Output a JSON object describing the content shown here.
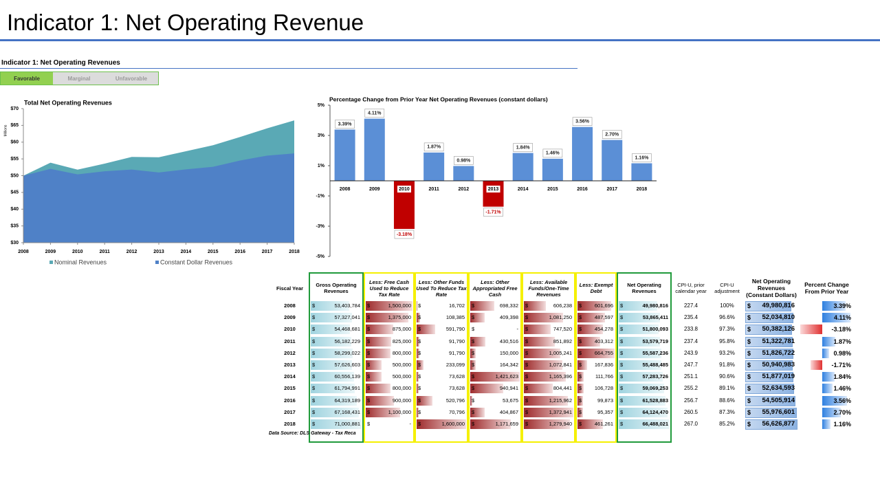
{
  "header": {
    "title": "Indicator 1: Net Operating Revenue",
    "subtitle": "Indicator 1: Net Operating Revenues",
    "ratings": [
      "Favorable",
      "Marginal",
      "Unfavorable"
    ]
  },
  "chart_data": [
    {
      "type": "area",
      "title": "Total Net Operating Revenues",
      "y_label": "Millions",
      "x": [
        2008,
        2009,
        2010,
        2011,
        2012,
        2013,
        2014,
        2015,
        2016,
        2017,
        2018
      ],
      "xlim": [
        2008,
        2018
      ],
      "xticks": [
        2008,
        2009,
        2010,
        2011,
        2012,
        2013,
        2014,
        2015,
        2016,
        2017,
        2018
      ],
      "ylim": [
        30,
        70
      ],
      "yticks": [
        {
          "value": 30,
          "label": "$30"
        },
        {
          "value": 35,
          "label": "$35"
        },
        {
          "value": 40,
          "label": "$40"
        },
        {
          "value": 45,
          "label": "$45"
        },
        {
          "value": 50,
          "label": "$50"
        },
        {
          "value": 55,
          "label": "$55"
        },
        {
          "value": 60,
          "label": "$60"
        },
        {
          "value": 65,
          "label": "$65"
        },
        {
          "value": 70,
          "label": "$70"
        }
      ],
      "series": [
        {
          "name": "Nominal Revenues",
          "color": "#5aa9b5",
          "values": [
            49.98,
            53.87,
            51.8,
            53.58,
            55.59,
            55.49,
            57.28,
            59.07,
            61.53,
            64.12,
            66.49
          ]
        },
        {
          "name": "Constant Dollar Revenues",
          "color": "#4f81c7",
          "values": [
            49.98,
            52.03,
            50.38,
            51.32,
            51.83,
            50.94,
            51.88,
            52.63,
            54.51,
            55.98,
            56.63
          ]
        }
      ]
    },
    {
      "type": "bar",
      "title": "Percentage Change from Prior Year Net Operating  Revenues (constant dollars)",
      "categories": [
        "2008",
        "2009",
        "2010",
        "2011",
        "2012",
        "2013",
        "2014",
        "2015",
        "2016",
        "2017",
        "2018"
      ],
      "values": [
        3.39,
        4.11,
        -3.18,
        1.87,
        0.98,
        -1.71,
        1.84,
        1.46,
        3.56,
        2.7,
        1.16
      ],
      "value_labels": [
        "3.39%",
        "4.11%",
        "-3.18%",
        "1.87%",
        "0.98%",
        "-1.71%",
        "1.84%",
        "1.46%",
        "3.56%",
        "2.70%",
        "1.16%"
      ],
      "color": "#5b8fd6",
      "negative_color": "#c00000",
      "ylim": [
        -5,
        5
      ],
      "yticks": [
        {
          "value": 5,
          "label": "5%"
        },
        {
          "value": 3,
          "label": "3%"
        },
        {
          "value": 1,
          "label": "1%"
        },
        {
          "value": -1,
          "label": "-1%"
        },
        {
          "value": -3,
          "label": "-3%"
        },
        {
          "value": -5,
          "label": "-5%"
        }
      ]
    }
  ],
  "table": {
    "currency": "$",
    "columns": [
      "Fiscal Year",
      "Gross Operating Revenues",
      "Less: Free Cash Used to Reduce Tax Rate",
      "Less: Other Funds Used To Reduce Tax Rate",
      "Less: Other Appropriated Free Cash",
      "Less: Available Funds/One-Time Revenues",
      "Less: Exempt Debt",
      "Net Operating Revenues",
      "CPI-U, prior calendar year",
      "CPI-U adjustment",
      "Net Operating Revenues (Constant Dollars)",
      "Percent Change From Prior Year"
    ],
    "rows": [
      [
        "2008",
        "53,403,784",
        "1,500,000",
        "16,702",
        "698,332",
        "606,238",
        "601,696",
        "49,980,816",
        "227.4",
        "100%",
        "49,980,816",
        "3.39%"
      ],
      [
        "2009",
        "57,327,041",
        "1,375,000",
        "108,385",
        "409,398",
        "1,081,250",
        "487,597",
        "53,865,411",
        "235.4",
        "96.6%",
        "52,034,810",
        "4.11%"
      ],
      [
        "2010",
        "54,468,681",
        "875,000",
        "591,790",
        "-",
        "747,520",
        "454,278",
        "51,800,093",
        "233.8",
        "97.3%",
        "50,382,126",
        "-3.18%"
      ],
      [
        "2011",
        "56,182,229",
        "825,000",
        "91,790",
        "430,516",
        "851,892",
        "403,312",
        "53,579,719",
        "237.4",
        "95.8%",
        "51,322,781",
        "1.87%"
      ],
      [
        "2012",
        "58,299,022",
        "800,000",
        "91,790",
        "150,000",
        "1,005,241",
        "664,755",
        "55,587,236",
        "243.9",
        "93.2%",
        "51,826,722",
        "0.98%"
      ],
      [
        "2013",
        "57,626,603",
        "500,000",
        "233,099",
        "164,342",
        "1,072,841",
        "167,836",
        "55,488,485",
        "247.7",
        "91.8%",
        "50,940,983",
        "-1.71%"
      ],
      [
        "2014",
        "60,556,139",
        "500,000",
        "73,628",
        "1,421,623",
        "1,165,396",
        "111,766",
        "57,283,726",
        "251.1",
        "90.6%",
        "51,877,019",
        "1.84%"
      ],
      [
        "2015",
        "61,794,991",
        "800,000",
        "73,628",
        "940,941",
        "804,441",
        "106,728",
        "59,069,253",
        "255.2",
        "89.1%",
        "52,634,593",
        "1.46%"
      ],
      [
        "2016",
        "64,319,189",
        "900,000",
        "520,796",
        "53,675",
        "1,215,962",
        "99,873",
        "61,528,883",
        "256.7",
        "88.6%",
        "54,505,914",
        "3.56%"
      ],
      [
        "2017",
        "67,168,431",
        "1,100,000",
        "70,796",
        "404,867",
        "1,372,941",
        "95,357",
        "64,124,470",
        "260.5",
        "87.3%",
        "55,976,601",
        "2.70%"
      ],
      [
        "2018",
        "71,000,881",
        "-",
        "1,600,000",
        "1,171,659",
        "1,279,940",
        "461,261",
        "66,488,021",
        "267.0",
        "85.2%",
        "56,626,877",
        "1.16%"
      ]
    ],
    "source": "Data Source: DLS Gateway - Tax Reca"
  }
}
